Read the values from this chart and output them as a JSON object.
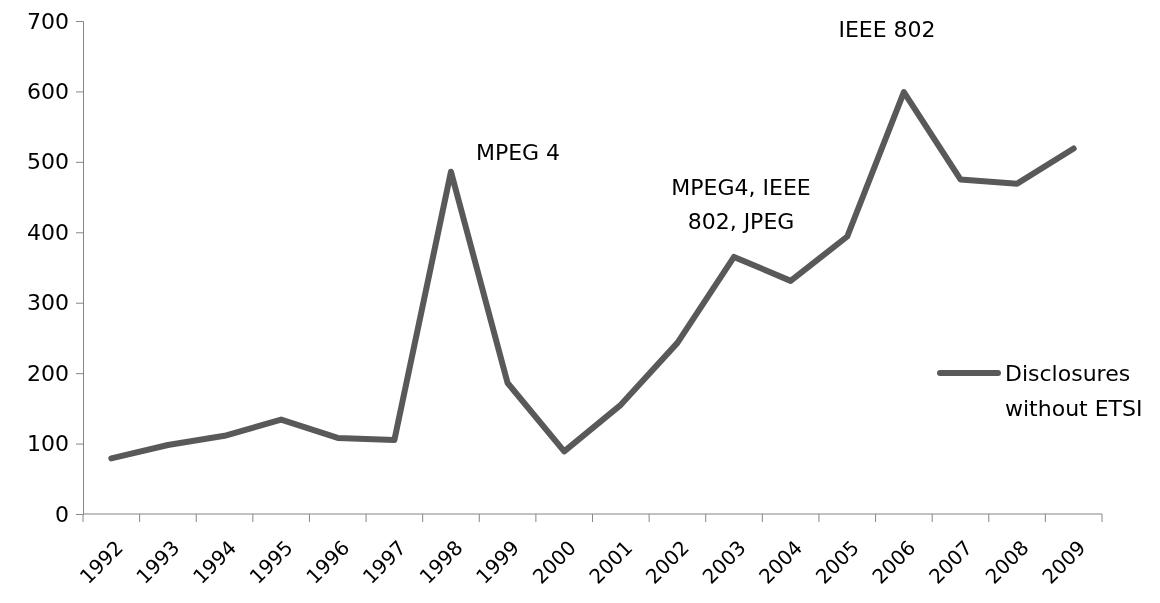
{
  "chart_data": {
    "type": "line",
    "categories": [
      "1992",
      "1993",
      "1994",
      "1995",
      "1996",
      "1997",
      "1998",
      "1999",
      "2000",
      "2001",
      "2002",
      "2003",
      "2004",
      "2005",
      "2006",
      "2007",
      "2008",
      "2009"
    ],
    "series": [
      {
        "name": "Disclosures without ETSI",
        "color": "#595959",
        "values": [
          79,
          98,
          111,
          134,
          108,
          105,
          486,
          186,
          89,
          155,
          243,
          365,
          331,
          394,
          599,
          475,
          469,
          519
        ]
      }
    ],
    "ylim": [
      0,
      700
    ],
    "yticks": [
      0,
      100,
      200,
      300,
      400,
      500,
      600,
      700
    ],
    "grid": false,
    "legend": "right",
    "marker": "none",
    "line_style": "solid",
    "annotations": [
      "MPEG 4",
      "MPEG4, IEEE 802, JPEG",
      "IEEE 802"
    ]
  }
}
